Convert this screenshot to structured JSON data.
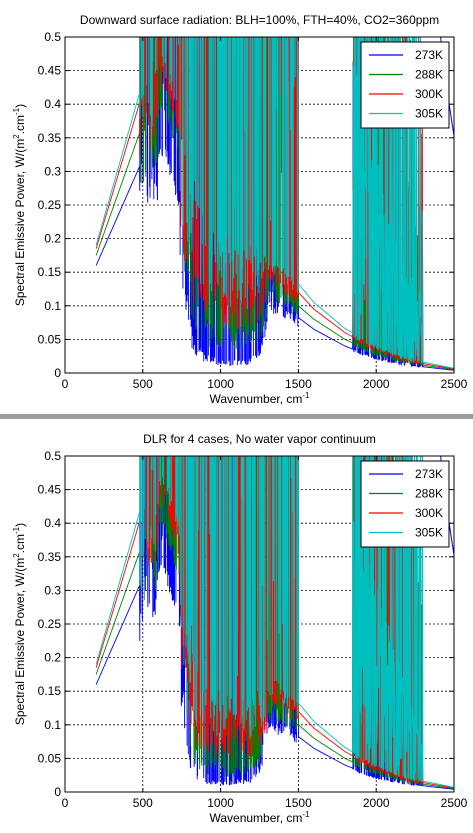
{
  "chart_data": [
    {
      "type": "line",
      "title": "Downward surface radiation: BLH=100%, FTH=40%, CO2=360ppm",
      "xlabel_main": "Wavenumber, cm",
      "xlabel_sup": "-1",
      "ylabel": "Spectral Emissive Power, W/(m",
      "ylabel_sup": "2",
      "ylabel_end": ".cm",
      "ylabel_sup2": "-1",
      "ylabel_close": ")",
      "xlim": [
        0,
        2500
      ],
      "ylim": [
        0,
        0.5
      ],
      "xticks": [
        0,
        500,
        1000,
        1500,
        2000,
        2500
      ],
      "yticks": [
        0,
        0.05,
        0.1,
        0.15,
        0.2,
        0.25,
        0.3,
        0.35,
        0.4,
        0.45,
        0.5
      ],
      "xtick_labels": [
        "0",
        "500",
        "1000",
        "1500",
        "2000",
        "2500"
      ],
      "ytick_labels": [
        "0",
        "0.05",
        "0.1",
        "0.15",
        "0.2",
        "0.25",
        "0.3",
        "0.35",
        "0.4",
        "0.45",
        "0.5"
      ],
      "grid": true,
      "legend_position": "top-right",
      "x_start": 200,
      "series": [
        {
          "name": "273K",
          "color": "#0000ff",
          "T": 273,
          "x": [
            200,
            560,
            650,
            750,
            780,
            820,
            900,
            1000,
            1100,
            1200,
            1260,
            1290,
            1400,
            1600,
            1800,
            2000,
            2200,
            2500
          ],
          "y": [
            0.16,
            0.35,
            0.34,
            0.25,
            0.14,
            0.06,
            0.03,
            0.02,
            0.02,
            0.025,
            0.05,
            0.11,
            0.1,
            0.065,
            0.04,
            0.022,
            0.012,
            0.004
          ]
        },
        {
          "name": "288K",
          "color": "#008000",
          "T": 288,
          "x": [
            200,
            560,
            650,
            740,
            780,
            820,
            900,
            1000,
            1100,
            1200,
            1260,
            1290,
            1400,
            1600,
            1800,
            2000,
            2200,
            2500
          ],
          "y": [
            0.175,
            0.41,
            0.41,
            0.33,
            0.22,
            0.12,
            0.08,
            0.07,
            0.07,
            0.075,
            0.09,
            0.135,
            0.12,
            0.08,
            0.05,
            0.028,
            0.015,
            0.005
          ]
        },
        {
          "name": "300K",
          "color": "#ff0000",
          "T": 300,
          "x": [
            200,
            560,
            650,
            740,
            790,
            830,
            900,
            1000,
            1100,
            1200,
            1260,
            1290,
            1400,
            1600,
            1800,
            2000,
            2200,
            2500
          ],
          "y": [
            0.185,
            0.465,
            0.45,
            0.37,
            0.28,
            0.2,
            0.15,
            0.13,
            0.13,
            0.14,
            0.15,
            0.17,
            0.145,
            0.095,
            0.06,
            0.035,
            0.018,
            0.006
          ]
        },
        {
          "name": "305K",
          "color": "#00bfbf",
          "T": 305,
          "x": [
            200,
            570,
            660,
            750,
            800,
            850,
            900,
            1000,
            1100,
            1200,
            1260,
            1290,
            1400,
            1600,
            1800,
            2000,
            2200,
            2500
          ],
          "y": [
            0.19,
            0.49,
            0.47,
            0.4,
            0.33,
            0.27,
            0.23,
            0.2,
            0.19,
            0.19,
            0.19,
            0.19,
            0.16,
            0.105,
            0.066,
            0.04,
            0.021,
            0.007
          ]
        }
      ]
    },
    {
      "type": "line",
      "title": "DLR for 4 cases, No water vapor continuum",
      "xlabel_main": "Wavenumber, cm",
      "xlabel_sup": "-1",
      "ylabel": "Spectral Emissive Power, W/(m",
      "ylabel_sup": "2",
      "ylabel_end": ".cm",
      "ylabel_sup2": "-1",
      "ylabel_close": ")",
      "xlim": [
        0,
        2500
      ],
      "ylim": [
        0,
        0.5
      ],
      "xticks": [
        0,
        500,
        1000,
        1500,
        2000,
        2500
      ],
      "yticks": [
        0,
        0.05,
        0.1,
        0.15,
        0.2,
        0.25,
        0.3,
        0.35,
        0.4,
        0.45,
        0.5
      ],
      "xtick_labels": [
        "0",
        "500",
        "1000",
        "1500",
        "2000",
        "2500"
      ],
      "ytick_labels": [
        "0",
        "0.05",
        "0.1",
        "0.15",
        "0.2",
        "0.25",
        "0.3",
        "0.35",
        "0.4",
        "0.45",
        "0.5"
      ],
      "grid": true,
      "legend_position": "top-right",
      "x_start": 200,
      "series": [
        {
          "name": "273K",
          "color": "#0000ff",
          "T": 273,
          "x": [
            200,
            560,
            650,
            750,
            780,
            820,
            900,
            1000,
            1100,
            1200,
            1260,
            1290,
            1400,
            1600,
            1800,
            2000,
            2200,
            2500
          ],
          "y": [
            0.16,
            0.35,
            0.34,
            0.25,
            0.12,
            0.04,
            0.02,
            0.02,
            0.02,
            0.02,
            0.05,
            0.11,
            0.1,
            0.065,
            0.04,
            0.022,
            0.012,
            0.004
          ]
        },
        {
          "name": "288K",
          "color": "#008000",
          "T": 288,
          "x": [
            200,
            560,
            650,
            740,
            780,
            820,
            900,
            1000,
            1100,
            1200,
            1260,
            1290,
            1400,
            1600,
            1800,
            2000,
            2200,
            2500
          ],
          "y": [
            0.175,
            0.41,
            0.41,
            0.33,
            0.2,
            0.09,
            0.05,
            0.045,
            0.045,
            0.05,
            0.08,
            0.13,
            0.12,
            0.08,
            0.05,
            0.028,
            0.015,
            0.005
          ]
        },
        {
          "name": "300K",
          "color": "#ff0000",
          "T": 300,
          "x": [
            200,
            560,
            650,
            740,
            790,
            830,
            900,
            1000,
            1100,
            1200,
            1260,
            1290,
            1400,
            1600,
            1800,
            2000,
            2200,
            2500
          ],
          "y": [
            0.185,
            0.465,
            0.45,
            0.37,
            0.22,
            0.14,
            0.11,
            0.1,
            0.1,
            0.105,
            0.12,
            0.16,
            0.145,
            0.095,
            0.06,
            0.035,
            0.018,
            0.006
          ]
        },
        {
          "name": "305K",
          "color": "#00bfbf",
          "T": 305,
          "x": [
            200,
            570,
            660,
            750,
            800,
            850,
            900,
            1000,
            1100,
            1200,
            1260,
            1290,
            1400,
            1600,
            1800,
            2000,
            2200,
            2500
          ],
          "y": [
            0.19,
            0.49,
            0.47,
            0.4,
            0.28,
            0.18,
            0.16,
            0.15,
            0.15,
            0.15,
            0.16,
            0.18,
            0.16,
            0.105,
            0.066,
            0.04,
            0.021,
            0.007
          ]
        }
      ]
    }
  ]
}
